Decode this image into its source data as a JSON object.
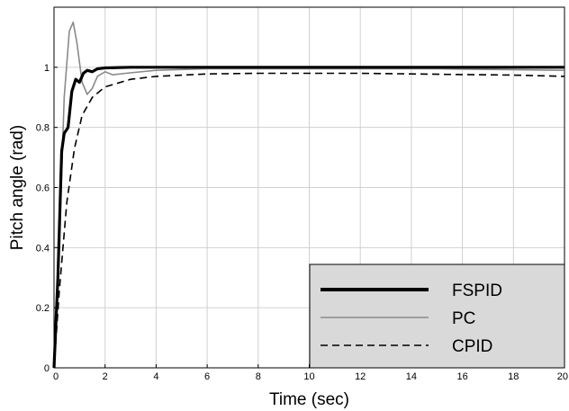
{
  "chart_data": {
    "type": "line",
    "title": "",
    "xlabel": "Time (sec)",
    "ylabel": "Pitch angle (rad)",
    "xlim": [
      0,
      20
    ],
    "ylim": [
      0,
      1.2
    ],
    "xticks": [
      0,
      2,
      4,
      6,
      8,
      10,
      12,
      14,
      16,
      18,
      20
    ],
    "yticks": [
      0,
      0.2,
      0.4,
      0.6,
      0.8,
      1
    ],
    "xtick_labels": [
      "0",
      "2",
      "4",
      "6",
      "8",
      "10",
      "12",
      "14",
      "16",
      "18",
      "20"
    ],
    "ytick_labels": [
      "0",
      "0.2",
      "0.4",
      "0.6",
      "0.8",
      "1"
    ],
    "grid": true,
    "legend_position": "bottom-right",
    "series": [
      {
        "name": "FSPID",
        "color": "#000000",
        "style": "solid-thick",
        "points": [
          [
            0,
            0
          ],
          [
            0.15,
            0.3
          ],
          [
            0.3,
            0.72
          ],
          [
            0.4,
            0.78
          ],
          [
            0.55,
            0.8
          ],
          [
            0.7,
            0.92
          ],
          [
            0.85,
            0.96
          ],
          [
            1.0,
            0.95
          ],
          [
            1.15,
            0.98
          ],
          [
            1.3,
            0.99
          ],
          [
            1.5,
            0.985
          ],
          [
            1.7,
            0.995
          ],
          [
            2.0,
            0.998
          ],
          [
            3,
            1.0
          ],
          [
            5,
            1.0
          ],
          [
            10,
            1.0
          ],
          [
            15,
            1.0
          ],
          [
            20,
            1.0
          ]
        ]
      },
      {
        "name": "PC",
        "color": "#8a8a8a",
        "style": "solid-thin",
        "points": [
          [
            0,
            0
          ],
          [
            0.2,
            0.4
          ],
          [
            0.4,
            0.9
          ],
          [
            0.6,
            1.12
          ],
          [
            0.75,
            1.15
          ],
          [
            0.9,
            1.08
          ],
          [
            1.1,
            0.95
          ],
          [
            1.3,
            0.91
          ],
          [
            1.5,
            0.93
          ],
          [
            1.7,
            0.97
          ],
          [
            2.0,
            0.985
          ],
          [
            2.3,
            0.975
          ],
          [
            2.8,
            0.98
          ],
          [
            4,
            0.99
          ],
          [
            6,
            0.995
          ],
          [
            10,
            0.995
          ],
          [
            15,
            0.995
          ],
          [
            20,
            0.99
          ]
        ]
      },
      {
        "name": "CPID",
        "color": "#000000",
        "style": "dashed",
        "points": [
          [
            0,
            0
          ],
          [
            0.2,
            0.25
          ],
          [
            0.5,
            0.55
          ],
          [
            0.8,
            0.73
          ],
          [
            1.1,
            0.84
          ],
          [
            1.5,
            0.9
          ],
          [
            2.0,
            0.935
          ],
          [
            3.0,
            0.96
          ],
          [
            4.0,
            0.97
          ],
          [
            6,
            0.978
          ],
          [
            8,
            0.98
          ],
          [
            10,
            0.98
          ],
          [
            12,
            0.98
          ],
          [
            14,
            0.978
          ],
          [
            16,
            0.976
          ],
          [
            18,
            0.974
          ],
          [
            20,
            0.97
          ]
        ]
      }
    ]
  }
}
